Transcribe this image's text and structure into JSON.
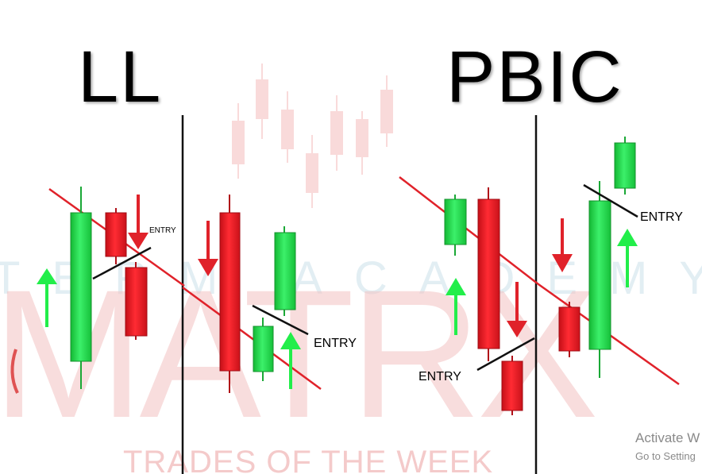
{
  "titles": {
    "left": "LL",
    "right": "PBIC"
  },
  "entry_labels": [
    "ENTRY",
    "ENTRY",
    "ENTRY",
    "ENTRY"
  ],
  "watermark": {
    "main": "MATRX",
    "sub": "TERM ACADEMY",
    "footer": "TRADES OF THE WEEK"
  },
  "os_overlay": {
    "title": "Activate W",
    "subtitle": "Go to Setting"
  },
  "colors": {
    "bull": "#22dd4a",
    "bear": "#ee1c25",
    "trendline": "#e0222a",
    "divider": "#111111",
    "arrow_up": "#22ee4a",
    "arrow_down": "#e0222a"
  }
}
